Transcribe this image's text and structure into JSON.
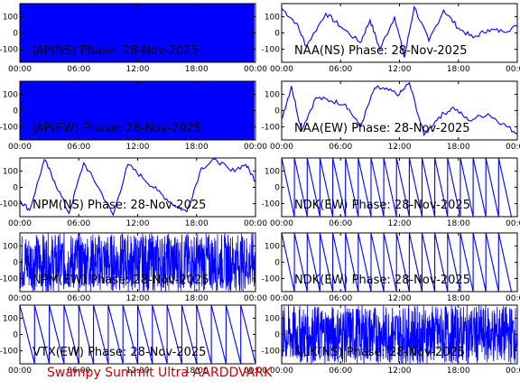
{
  "footer": "Swampy Summit Ultra AARDDVARK",
  "chart_data": [
    {
      "type": "line",
      "label": "JAP(NS) Phase: 28-Nov-2025",
      "xticks": [
        "00:00",
        "06:00",
        "12:00",
        "18:00",
        "00:00"
      ],
      "yticks": [
        "100",
        "0",
        "-100"
      ],
      "xlim": [
        0,
        24
      ],
      "ylim": [
        -180,
        180
      ],
      "color": "#0000ff",
      "pattern": "dense",
      "series": [
        {
          "x": [
            0,
            23.9
          ],
          "y": [
            -180,
            180
          ]
        }
      ]
    },
    {
      "type": "line",
      "label": "NAA(NS) Phase: 28-Nov-2025",
      "xticks": [
        "00:00",
        "06:00",
        "12:00",
        "18:00",
        "00:00"
      ],
      "yticks": [
        "100",
        "0",
        "-100"
      ],
      "xlim": [
        0,
        24
      ],
      "ylim": [
        -180,
        180
      ],
      "color": "#0000ff",
      "pattern": "trace",
      "series": [
        {
          "x": [
            0,
            1.5,
            2.5,
            4.5,
            6.0,
            8.0,
            9.0,
            10.0,
            11.5,
            12.5,
            13.5,
            15.0,
            16.5,
            18.0,
            19.5,
            21.0,
            22.5,
            24.0
          ],
          "y": [
            150,
            60,
            -80,
            120,
            40,
            -60,
            80,
            -100,
            100,
            -150,
            160,
            -50,
            140,
            30,
            -30,
            20,
            10,
            40
          ]
        }
      ]
    },
    {
      "type": "line",
      "label": "JAP(EW) Phase: 28-Nov-2025",
      "xticks": [
        "00:00",
        "06:00",
        "12:00",
        "18:00",
        "00:00"
      ],
      "yticks": [
        "100",
        "0",
        "-100"
      ],
      "xlim": [
        0,
        24
      ],
      "ylim": [
        -180,
        180
      ],
      "color": "#0000ff",
      "pattern": "dense",
      "series": [
        {
          "x": [
            0,
            23.9
          ],
          "y": [
            -180,
            180
          ]
        }
      ]
    },
    {
      "type": "line",
      "label": "NAA(EW) Phase: 28-Nov-2025",
      "xticks": [
        "00:00",
        "06:00",
        "12:00",
        "18:00",
        "00:00"
      ],
      "yticks": [
        "100",
        "0",
        "-100"
      ],
      "xlim": [
        0,
        24
      ],
      "ylim": [
        -180,
        180
      ],
      "color": "#0000ff",
      "pattern": "trace",
      "series": [
        {
          "x": [
            0,
            1.0,
            2.0,
            3.5,
            5.0,
            6.5,
            8.0,
            9.5,
            10.5,
            12.0,
            13.0,
            14.5,
            16.0,
            17.5,
            19.0,
            21.0,
            22.5,
            24.0
          ],
          "y": [
            -50,
            150,
            -120,
            80,
            60,
            40,
            -100,
            140,
            130,
            100,
            170,
            -150,
            -40,
            20,
            -60,
            -20,
            -80,
            -140
          ]
        }
      ]
    },
    {
      "type": "line",
      "label": "NPM(NS) Phase: 28-Nov-2025",
      "xticks": [
        "00:00",
        "06:00",
        "12:00",
        "18:00",
        "00:00"
      ],
      "yticks": [
        "100",
        "0",
        "-100"
      ],
      "xlim": [
        0,
        24
      ],
      "ylim": [
        -180,
        180
      ],
      "color": "#0000ff",
      "pattern": "trace",
      "series": [
        {
          "x": [
            0,
            1.0,
            2.5,
            3.5,
            5.0,
            6.5,
            8.0,
            9.5,
            11.0,
            12.5,
            14.0,
            15.5,
            17.0,
            18.5,
            20.0,
            21.5,
            23.0,
            24.0
          ],
          "y": [
            -80,
            -140,
            170,
            40,
            -160,
            150,
            0,
            -170,
            140,
            60,
            -20,
            -100,
            -150,
            120,
            170,
            100,
            140,
            40
          ]
        }
      ]
    },
    {
      "type": "line",
      "label": "NDK(EW) Phase: 28-Nov-2025",
      "xticks": [
        "00:00",
        "06:00",
        "12:00",
        "18:00",
        "00:00"
      ],
      "yticks": [
        "100",
        "0",
        "-100"
      ],
      "xlim": [
        0,
        24
      ],
      "ylim": [
        -180,
        180
      ],
      "color": "#0000ff",
      "pattern": "saw",
      "series": [
        {
          "x": [
            0,
            1.3,
            1.3,
            2.6,
            2.6,
            3.9,
            3.9,
            5.2,
            5.2,
            6.5,
            6.5,
            7.8,
            7.8,
            9.1,
            9.1,
            10.4,
            10.4,
            11.7,
            11.7,
            13.0,
            13.0,
            14.3,
            14.3,
            15.6,
            15.6,
            16.9,
            16.9,
            18.2,
            18.2,
            19.5,
            19.5,
            20.8,
            20.8,
            22.1,
            22.1,
            23.4
          ],
          "y": [
            180,
            -180,
            180,
            -180,
            180,
            -180,
            180,
            -180,
            180,
            -180,
            180,
            -180,
            180,
            -180,
            180,
            -180,
            180,
            -180,
            180,
            -180,
            180,
            -180,
            180,
            -180,
            180,
            -180,
            180,
            -180,
            180,
            -180,
            180,
            -180,
            180,
            -180,
            180,
            -180
          ]
        }
      ]
    },
    {
      "type": "line",
      "label": "NPM(EW) Phase: 28-Nov-2025",
      "xticks": [
        "00:00",
        "06:00",
        "12:00",
        "18:00",
        "00:00"
      ],
      "yticks": [
        "100",
        "0",
        "-100"
      ],
      "xlim": [
        0,
        24
      ],
      "ylim": [
        -180,
        180
      ],
      "color": "#0000ff",
      "pattern": "noise",
      "series": [
        {
          "x": [
            0,
            4,
            8,
            12,
            16,
            20,
            24
          ],
          "y": [
            -180,
            180,
            -180,
            180,
            -180,
            180,
            -180
          ]
        }
      ]
    },
    {
      "type": "line",
      "label": "NDK(EW) Phase: 28-Nov-2025",
      "xticks": [
        "00:00",
        "06:00",
        "12:00",
        "18:00",
        "00:00"
      ],
      "yticks": [
        "100",
        "0",
        "-100"
      ],
      "xlim": [
        0,
        24
      ],
      "ylim": [
        -180,
        180
      ],
      "color": "#0000ff",
      "pattern": "saw",
      "series": [
        {
          "x": [
            0,
            1.3,
            1.3,
            2.6,
            2.6,
            3.9,
            3.9,
            5.2,
            5.2,
            6.5,
            6.5,
            7.8,
            7.8,
            9.1,
            9.1,
            10.4,
            10.4,
            11.7,
            11.7,
            13.0,
            13.0,
            14.3,
            14.3,
            15.6,
            15.6,
            16.9,
            16.9,
            18.2,
            18.2,
            19.5,
            19.5,
            20.8,
            20.8,
            22.1,
            22.1,
            23.4
          ],
          "y": [
            180,
            -180,
            180,
            -180,
            180,
            -180,
            180,
            -180,
            180,
            -180,
            180,
            -180,
            180,
            -180,
            180,
            -180,
            180,
            -180,
            180,
            -180,
            180,
            -180,
            180,
            -180,
            180,
            -180,
            180,
            -180,
            180,
            -180,
            180,
            -180,
            180,
            -180,
            180,
            -180
          ]
        }
      ]
    },
    {
      "type": "line",
      "label": "VTX(EW) Phase: 28-Nov-2025",
      "xticks": [
        "00:00",
        "06:00",
        "12:00",
        "18:00",
        "00:00"
      ],
      "yticks": [
        "100",
        "0",
        "-100"
      ],
      "xlim": [
        0,
        24
      ],
      "ylim": [
        -180,
        180
      ],
      "color": "#0000ff",
      "pattern": "saw",
      "series": [
        {
          "x": [
            0,
            1.5,
            1.5,
            3.0,
            3.0,
            4.5,
            4.5,
            6.0,
            6.0,
            7.5,
            7.5,
            9.0,
            9.0,
            10.5,
            10.5,
            12.0,
            12.0,
            13.5,
            13.5,
            15.0,
            15.0,
            16.5,
            16.5,
            18.0,
            18.0,
            19.5,
            19.5,
            21.0,
            21.0,
            22.5,
            22.5,
            24.0
          ],
          "y": [
            180,
            -180,
            180,
            -180,
            180,
            -180,
            180,
            -180,
            180,
            -180,
            180,
            -180,
            180,
            -180,
            180,
            -180,
            180,
            -180,
            180,
            -180,
            180,
            -180,
            180,
            -180,
            180,
            -180,
            180,
            -180,
            180,
            -180,
            180,
            -180
          ]
        }
      ]
    },
    {
      "type": "line",
      "label": "NLK(NS) Phase: 28-Nov-2025",
      "xticks": [
        "00:00",
        "06:00",
        "12:00",
        "18:00",
        "00:00"
      ],
      "yticks": [
        "100",
        "0",
        "-100"
      ],
      "xlim": [
        0,
        24
      ],
      "ylim": [
        -180,
        180
      ],
      "color": "#0000ff",
      "pattern": "noise",
      "series": [
        {
          "x": [
            0,
            4,
            8,
            12,
            16,
            20,
            24
          ],
          "y": [
            -180,
            180,
            -180,
            180,
            -180,
            180,
            -180
          ]
        }
      ]
    }
  ]
}
